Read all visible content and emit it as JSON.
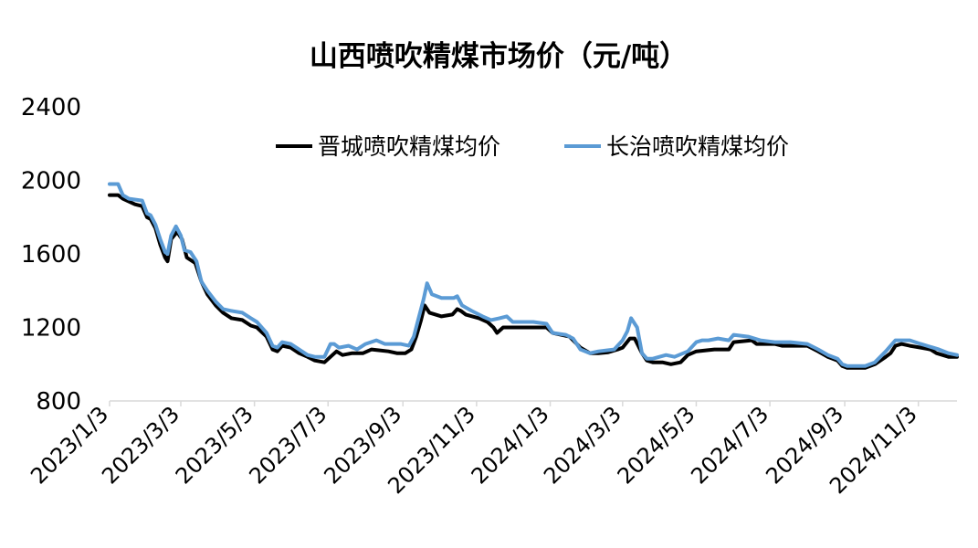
{
  "chart_data": {
    "type": "line",
    "title": "山西喷吹精煤市场价（元/吨）",
    "xlabel": "",
    "ylabel": "",
    "ylim": [
      800,
      2400
    ],
    "y_ticks": [
      800,
      1200,
      1600,
      2000,
      2400
    ],
    "x_ticks": [
      "2023/1/3",
      "2023/3/3",
      "2023/5/3",
      "2023/7/3",
      "2023/9/3",
      "2023/11/3",
      "2024/1/3",
      "2024/3/3",
      "2024/5/3",
      "2024/7/3",
      "2024/9/3",
      "2024/11/3"
    ],
    "x_range": [
      "2023-01-03",
      "2024-12-05"
    ],
    "grid": false,
    "legend_position": "top",
    "series": [
      {
        "name": "晋城喷吹精煤均价",
        "color": "#000000",
        "points": [
          [
            "2023-01-03",
            1920
          ],
          [
            "2023-01-10",
            1920
          ],
          [
            "2023-01-14",
            1900
          ],
          [
            "2023-01-24",
            1870
          ],
          [
            "2023-01-30",
            1860
          ],
          [
            "2023-02-03",
            1800
          ],
          [
            "2023-02-06",
            1790
          ],
          [
            "2023-02-10",
            1740
          ],
          [
            "2023-02-14",
            1650
          ],
          [
            "2023-02-18",
            1580
          ],
          [
            "2023-02-20",
            1560
          ],
          [
            "2023-02-23",
            1680
          ],
          [
            "2023-02-28",
            1720
          ],
          [
            "2023-03-04",
            1680
          ],
          [
            "2023-03-08",
            1580
          ],
          [
            "2023-03-15",
            1550
          ],
          [
            "2023-03-20",
            1450
          ],
          [
            "2023-03-25",
            1380
          ],
          [
            "2023-04-01",
            1320
          ],
          [
            "2023-04-07",
            1280
          ],
          [
            "2023-04-14",
            1250
          ],
          [
            "2023-04-23",
            1240
          ],
          [
            "2023-04-30",
            1210
          ],
          [
            "2023-05-05",
            1200
          ],
          [
            "2023-05-13",
            1150
          ],
          [
            "2023-05-18",
            1080
          ],
          [
            "2023-05-22",
            1070
          ],
          [
            "2023-05-26",
            1100
          ],
          [
            "2023-06-02",
            1090
          ],
          [
            "2023-06-09",
            1060
          ],
          [
            "2023-06-16",
            1040
          ],
          [
            "2023-06-22",
            1020
          ],
          [
            "2023-06-30",
            1010
          ],
          [
            "2023-07-05",
            1040
          ],
          [
            "2023-07-10",
            1070
          ],
          [
            "2023-07-15",
            1050
          ],
          [
            "2023-07-23",
            1060
          ],
          [
            "2023-08-01",
            1060
          ],
          [
            "2023-08-08",
            1080
          ],
          [
            "2023-08-22",
            1070
          ],
          [
            "2023-08-29",
            1060
          ],
          [
            "2023-09-05",
            1060
          ],
          [
            "2023-09-10",
            1080
          ],
          [
            "2023-09-14",
            1150
          ],
          [
            "2023-09-18",
            1240
          ],
          [
            "2023-09-21",
            1320
          ],
          [
            "2023-09-25",
            1280
          ],
          [
            "2023-10-05",
            1260
          ],
          [
            "2023-10-14",
            1270
          ],
          [
            "2023-10-18",
            1300
          ],
          [
            "2023-10-21",
            1290
          ],
          [
            "2023-10-25",
            1270
          ],
          [
            "2023-11-05",
            1250
          ],
          [
            "2023-11-12",
            1230
          ],
          [
            "2023-11-17",
            1200
          ],
          [
            "2023-11-20",
            1170
          ],
          [
            "2023-11-25",
            1200
          ],
          [
            "2023-12-05",
            1200
          ],
          [
            "2023-12-20",
            1200
          ],
          [
            "2023-12-31",
            1200
          ],
          [
            "2024-01-05",
            1170
          ],
          [
            "2024-01-12",
            1160
          ],
          [
            "2024-01-19",
            1150
          ],
          [
            "2024-01-28",
            1090
          ],
          [
            "2024-02-05",
            1060
          ],
          [
            "2024-02-12",
            1060
          ],
          [
            "2024-02-20",
            1065
          ],
          [
            "2024-02-28",
            1080
          ],
          [
            "2024-03-03",
            1090
          ],
          [
            "2024-03-09",
            1140
          ],
          [
            "2024-03-13",
            1140
          ],
          [
            "2024-03-19",
            1060
          ],
          [
            "2024-03-23",
            1020
          ],
          [
            "2024-03-28",
            1010
          ],
          [
            "2024-04-05",
            1010
          ],
          [
            "2024-04-12",
            1000
          ],
          [
            "2024-04-20",
            1010
          ],
          [
            "2024-04-26",
            1050
          ],
          [
            "2024-05-03",
            1070
          ],
          [
            "2024-05-18",
            1080
          ],
          [
            "2024-05-30",
            1080
          ],
          [
            "2024-06-03",
            1120
          ],
          [
            "2024-06-18",
            1130
          ],
          [
            "2024-06-22",
            1110
          ],
          [
            "2024-07-07",
            1110
          ],
          [
            "2024-07-13",
            1100
          ],
          [
            "2024-07-22",
            1100
          ],
          [
            "2024-08-03",
            1100
          ],
          [
            "2024-08-12",
            1070
          ],
          [
            "2024-08-20",
            1040
          ],
          [
            "2024-08-28",
            1020
          ],
          [
            "2024-09-01",
            990
          ],
          [
            "2024-09-05",
            980
          ],
          [
            "2024-09-20",
            980
          ],
          [
            "2024-09-28",
            1000
          ],
          [
            "2024-10-07",
            1040
          ],
          [
            "2024-10-11",
            1060
          ],
          [
            "2024-10-15",
            1100
          ],
          [
            "2024-10-20",
            1110
          ],
          [
            "2024-10-27",
            1100
          ],
          [
            "2024-11-05",
            1090
          ],
          [
            "2024-11-13",
            1080
          ],
          [
            "2024-11-18",
            1060
          ],
          [
            "2024-11-28",
            1040
          ],
          [
            "2024-12-05",
            1040
          ]
        ]
      },
      {
        "name": "长治喷吹精煤均价",
        "color": "#5B9BD5",
        "points": [
          [
            "2023-01-03",
            1980
          ],
          [
            "2023-01-10",
            1980
          ],
          [
            "2023-01-14",
            1920
          ],
          [
            "2023-01-19",
            1900
          ],
          [
            "2023-01-30",
            1890
          ],
          [
            "2023-02-03",
            1820
          ],
          [
            "2023-02-06",
            1810
          ],
          [
            "2023-02-10",
            1760
          ],
          [
            "2023-02-14",
            1680
          ],
          [
            "2023-02-18",
            1610
          ],
          [
            "2023-02-20",
            1600
          ],
          [
            "2023-02-23",
            1700
          ],
          [
            "2023-02-27",
            1750
          ],
          [
            "2023-03-03",
            1700
          ],
          [
            "2023-03-06",
            1620
          ],
          [
            "2023-03-11",
            1610
          ],
          [
            "2023-03-16",
            1560
          ],
          [
            "2023-03-20",
            1450
          ],
          [
            "2023-03-25",
            1400
          ],
          [
            "2023-04-01",
            1340
          ],
          [
            "2023-04-07",
            1300
          ],
          [
            "2023-04-14",
            1290
          ],
          [
            "2023-04-23",
            1280
          ],
          [
            "2023-04-30",
            1250
          ],
          [
            "2023-05-05",
            1230
          ],
          [
            "2023-05-13",
            1170
          ],
          [
            "2023-05-18",
            1100
          ],
          [
            "2023-05-22",
            1090
          ],
          [
            "2023-05-26",
            1120
          ],
          [
            "2023-06-02",
            1110
          ],
          [
            "2023-06-09",
            1080
          ],
          [
            "2023-06-16",
            1050
          ],
          [
            "2023-06-22",
            1040
          ],
          [
            "2023-06-30",
            1040
          ],
          [
            "2023-07-05",
            1110
          ],
          [
            "2023-07-08",
            1110
          ],
          [
            "2023-07-12",
            1090
          ],
          [
            "2023-07-20",
            1100
          ],
          [
            "2023-07-27",
            1080
          ],
          [
            "2023-08-03",
            1110
          ],
          [
            "2023-08-12",
            1130
          ],
          [
            "2023-08-19",
            1110
          ],
          [
            "2023-09-01",
            1110
          ],
          [
            "2023-09-08",
            1100
          ],
          [
            "2023-09-12",
            1150
          ],
          [
            "2023-09-16",
            1250
          ],
          [
            "2023-09-20",
            1350
          ],
          [
            "2023-09-23",
            1440
          ],
          [
            "2023-09-27",
            1380
          ],
          [
            "2023-10-05",
            1360
          ],
          [
            "2023-10-15",
            1360
          ],
          [
            "2023-10-18",
            1370
          ],
          [
            "2023-10-22",
            1320
          ],
          [
            "2023-10-30",
            1290
          ],
          [
            "2023-11-08",
            1260
          ],
          [
            "2023-11-15",
            1240
          ],
          [
            "2023-11-22",
            1250
          ],
          [
            "2023-11-28",
            1260
          ],
          [
            "2023-12-03",
            1230
          ],
          [
            "2023-12-20",
            1230
          ],
          [
            "2023-12-31",
            1220
          ],
          [
            "2024-01-05",
            1170
          ],
          [
            "2024-01-16",
            1160
          ],
          [
            "2024-01-22",
            1140
          ],
          [
            "2024-01-28",
            1080
          ],
          [
            "2024-02-05",
            1060
          ],
          [
            "2024-02-12",
            1070
          ],
          [
            "2024-02-25",
            1080
          ],
          [
            "2024-03-03",
            1130
          ],
          [
            "2024-03-07",
            1180
          ],
          [
            "2024-03-10",
            1250
          ],
          [
            "2024-03-15",
            1200
          ],
          [
            "2024-03-19",
            1060
          ],
          [
            "2024-03-23",
            1030
          ],
          [
            "2024-03-28",
            1030
          ],
          [
            "2024-04-08",
            1050
          ],
          [
            "2024-04-15",
            1040
          ],
          [
            "2024-04-26",
            1070
          ],
          [
            "2024-05-03",
            1120
          ],
          [
            "2024-05-08",
            1130
          ],
          [
            "2024-05-13",
            1130
          ],
          [
            "2024-05-21",
            1140
          ],
          [
            "2024-05-30",
            1130
          ],
          [
            "2024-06-03",
            1160
          ],
          [
            "2024-06-15",
            1150
          ],
          [
            "2024-06-25",
            1130
          ],
          [
            "2024-07-07",
            1120
          ],
          [
            "2024-07-20",
            1120
          ],
          [
            "2024-08-03",
            1110
          ],
          [
            "2024-08-12",
            1080
          ],
          [
            "2024-08-20",
            1050
          ],
          [
            "2024-08-28",
            1030
          ],
          [
            "2024-09-01",
            1000
          ],
          [
            "2024-09-05",
            990
          ],
          [
            "2024-09-20",
            990
          ],
          [
            "2024-09-28",
            1010
          ],
          [
            "2024-10-07",
            1070
          ],
          [
            "2024-10-11",
            1100
          ],
          [
            "2024-10-15",
            1130
          ],
          [
            "2024-10-27",
            1130
          ],
          [
            "2024-11-05",
            1110
          ],
          [
            "2024-11-15",
            1090
          ],
          [
            "2024-11-20",
            1080
          ],
          [
            "2024-11-28",
            1060
          ],
          [
            "2024-12-05",
            1050
          ]
        ]
      }
    ]
  }
}
